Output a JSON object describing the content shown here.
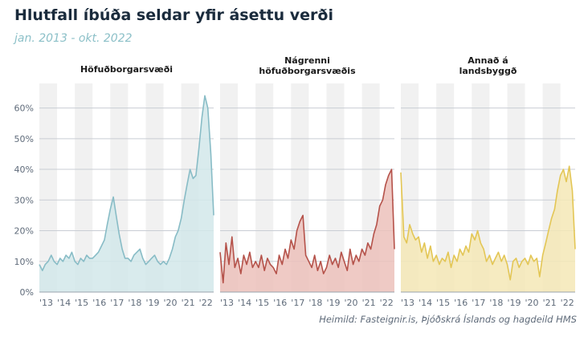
{
  "title": "Hlutfall íbúða seldar yfir ásettu verði",
  "subtitle": "jan. 2013 - okt. 2022",
  "source": "Heimild: Fasteignir.is, Þjóðskrá Íslands og hagdeild HMS",
  "chart_data": {
    "type": "area",
    "ylim": [
      0,
      68
    ],
    "y_ticks": [
      0,
      10,
      20,
      30,
      40,
      50,
      60
    ],
    "y_tick_labels": [
      "0%",
      "10%",
      "20%",
      "30%",
      "40%",
      "50%",
      "60%"
    ],
    "x_range": [
      2013.0,
      2022.83
    ],
    "x_ticks": [
      2013,
      2014,
      2015,
      2016,
      2017,
      2018,
      2019,
      2020,
      2021,
      2022
    ],
    "x_tick_labels": [
      "'13",
      "'14",
      "'15",
      "'16",
      "'17",
      "'18",
      "'19",
      "'20",
      "'21",
      "'22"
    ],
    "grid": true,
    "panels": [
      {
        "name_lines": [
          "Höfuðborgarsvæði"
        ],
        "color": "#88bcc6",
        "fill": "#d2e7ea",
        "points": [
          [
            2013.0,
            9
          ],
          [
            2013.17,
            7
          ],
          [
            2013.33,
            9
          ],
          [
            2013.5,
            10
          ],
          [
            2013.67,
            12
          ],
          [
            2013.83,
            10
          ],
          [
            2014.0,
            9
          ],
          [
            2014.17,
            11
          ],
          [
            2014.33,
            10
          ],
          [
            2014.5,
            12
          ],
          [
            2014.67,
            11
          ],
          [
            2014.83,
            13
          ],
          [
            2015.0,
            10
          ],
          [
            2015.17,
            9
          ],
          [
            2015.33,
            11
          ],
          [
            2015.5,
            10
          ],
          [
            2015.67,
            12
          ],
          [
            2015.83,
            11
          ],
          [
            2016.0,
            11
          ],
          [
            2016.17,
            12
          ],
          [
            2016.33,
            13
          ],
          [
            2016.5,
            15
          ],
          [
            2016.67,
            17
          ],
          [
            2016.83,
            22
          ],
          [
            2017.0,
            27
          ],
          [
            2017.17,
            31
          ],
          [
            2017.33,
            25
          ],
          [
            2017.5,
            19
          ],
          [
            2017.67,
            14
          ],
          [
            2017.83,
            11
          ],
          [
            2018.0,
            11
          ],
          [
            2018.17,
            10
          ],
          [
            2018.33,
            12
          ],
          [
            2018.5,
            13
          ],
          [
            2018.67,
            14
          ],
          [
            2018.83,
            11
          ],
          [
            2019.0,
            9
          ],
          [
            2019.17,
            10
          ],
          [
            2019.33,
            11
          ],
          [
            2019.5,
            12
          ],
          [
            2019.67,
            10
          ],
          [
            2019.83,
            9
          ],
          [
            2020.0,
            10
          ],
          [
            2020.17,
            9
          ],
          [
            2020.33,
            11
          ],
          [
            2020.5,
            14
          ],
          [
            2020.67,
            18
          ],
          [
            2020.83,
            20
          ],
          [
            2021.0,
            24
          ],
          [
            2021.17,
            30
          ],
          [
            2021.33,
            35
          ],
          [
            2021.5,
            40
          ],
          [
            2021.67,
            37
          ],
          [
            2021.83,
            38
          ],
          [
            2022.0,
            47
          ],
          [
            2022.17,
            57
          ],
          [
            2022.33,
            64
          ],
          [
            2022.5,
            60
          ],
          [
            2022.67,
            45
          ],
          [
            2022.83,
            25
          ]
        ]
      },
      {
        "name_lines": [
          "Nágrenni",
          "höfuðborgarsvæðis"
        ],
        "color": "#b5524a",
        "fill": "#ecc1bb",
        "points": [
          [
            2013.0,
            13
          ],
          [
            2013.17,
            3
          ],
          [
            2013.33,
            16
          ],
          [
            2013.5,
            9
          ],
          [
            2013.67,
            18
          ],
          [
            2013.83,
            8
          ],
          [
            2014.0,
            11
          ],
          [
            2014.17,
            6
          ],
          [
            2014.33,
            12
          ],
          [
            2014.5,
            9
          ],
          [
            2014.67,
            13
          ],
          [
            2014.83,
            8
          ],
          [
            2015.0,
            10
          ],
          [
            2015.17,
            8
          ],
          [
            2015.33,
            12
          ],
          [
            2015.5,
            7
          ],
          [
            2015.67,
            11
          ],
          [
            2015.83,
            9
          ],
          [
            2016.0,
            8
          ],
          [
            2016.17,
            6
          ],
          [
            2016.33,
            12
          ],
          [
            2016.5,
            9
          ],
          [
            2016.67,
            14
          ],
          [
            2016.83,
            11
          ],
          [
            2017.0,
            17
          ],
          [
            2017.17,
            14
          ],
          [
            2017.33,
            20
          ],
          [
            2017.5,
            23
          ],
          [
            2017.67,
            25
          ],
          [
            2017.83,
            12
          ],
          [
            2018.0,
            10
          ],
          [
            2018.17,
            8
          ],
          [
            2018.33,
            12
          ],
          [
            2018.5,
            7
          ],
          [
            2018.67,
            10
          ],
          [
            2018.83,
            6
          ],
          [
            2019.0,
            8
          ],
          [
            2019.17,
            12
          ],
          [
            2019.33,
            9
          ],
          [
            2019.5,
            11
          ],
          [
            2019.67,
            8
          ],
          [
            2019.83,
            13
          ],
          [
            2020.0,
            10
          ],
          [
            2020.17,
            7
          ],
          [
            2020.33,
            14
          ],
          [
            2020.5,
            9
          ],
          [
            2020.67,
            12
          ],
          [
            2020.83,
            10
          ],
          [
            2021.0,
            14
          ],
          [
            2021.17,
            12
          ],
          [
            2021.33,
            16
          ],
          [
            2021.5,
            14
          ],
          [
            2021.67,
            19
          ],
          [
            2021.83,
            22
          ],
          [
            2022.0,
            28
          ],
          [
            2022.17,
            30
          ],
          [
            2022.33,
            35
          ],
          [
            2022.5,
            38
          ],
          [
            2022.67,
            40
          ],
          [
            2022.83,
            14
          ]
        ]
      },
      {
        "name_lines": [
          "Annað á",
          "landsbyggð"
        ],
        "color": "#e3c655",
        "fill": "#f4e8b6",
        "points": [
          [
            2013.0,
            39
          ],
          [
            2013.17,
            18
          ],
          [
            2013.33,
            16
          ],
          [
            2013.5,
            22
          ],
          [
            2013.67,
            19
          ],
          [
            2013.83,
            17
          ],
          [
            2014.0,
            18
          ],
          [
            2014.17,
            13
          ],
          [
            2014.33,
            16
          ],
          [
            2014.5,
            11
          ],
          [
            2014.67,
            15
          ],
          [
            2014.83,
            10
          ],
          [
            2015.0,
            12
          ],
          [
            2015.17,
            9
          ],
          [
            2015.33,
            11
          ],
          [
            2015.5,
            10
          ],
          [
            2015.67,
            13
          ],
          [
            2015.83,
            8
          ],
          [
            2016.0,
            12
          ],
          [
            2016.17,
            10
          ],
          [
            2016.33,
            14
          ],
          [
            2016.5,
            12
          ],
          [
            2016.67,
            15
          ],
          [
            2016.83,
            13
          ],
          [
            2017.0,
            19
          ],
          [
            2017.17,
            17
          ],
          [
            2017.33,
            20
          ],
          [
            2017.5,
            16
          ],
          [
            2017.67,
            14
          ],
          [
            2017.83,
            10
          ],
          [
            2018.0,
            12
          ],
          [
            2018.17,
            9
          ],
          [
            2018.33,
            11
          ],
          [
            2018.5,
            13
          ],
          [
            2018.67,
            10
          ],
          [
            2018.83,
            12
          ],
          [
            2019.0,
            9
          ],
          [
            2019.17,
            4
          ],
          [
            2019.33,
            10
          ],
          [
            2019.5,
            11
          ],
          [
            2019.67,
            8
          ],
          [
            2019.83,
            10
          ],
          [
            2020.0,
            11
          ],
          [
            2020.17,
            9
          ],
          [
            2020.33,
            12
          ],
          [
            2020.5,
            10
          ],
          [
            2020.67,
            11
          ],
          [
            2020.83,
            5
          ],
          [
            2021.0,
            12
          ],
          [
            2021.17,
            16
          ],
          [
            2021.33,
            20
          ],
          [
            2021.5,
            24
          ],
          [
            2021.67,
            27
          ],
          [
            2021.83,
            33
          ],
          [
            2022.0,
            38
          ],
          [
            2022.17,
            40
          ],
          [
            2022.33,
            36
          ],
          [
            2022.5,
            41
          ],
          [
            2022.67,
            33
          ],
          [
            2022.83,
            14
          ]
        ]
      }
    ]
  }
}
